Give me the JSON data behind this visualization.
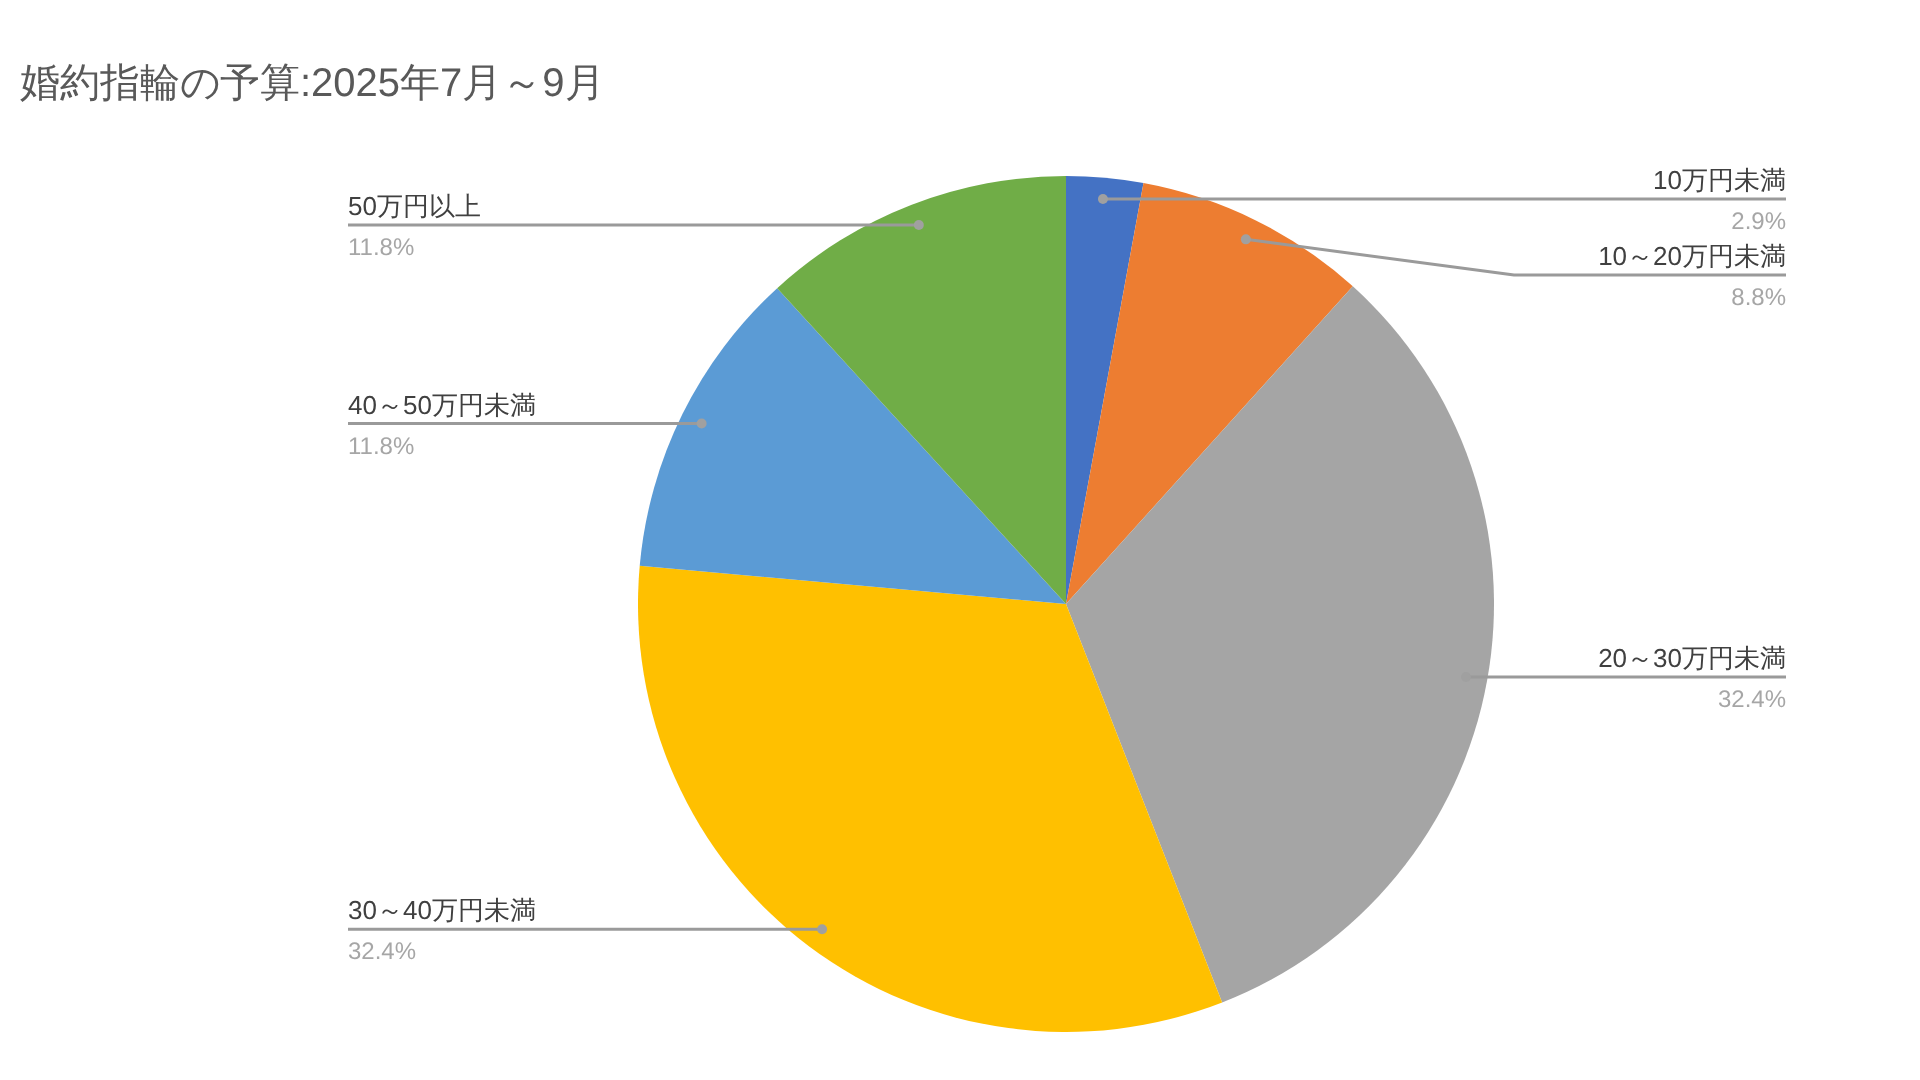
{
  "chart_data": {
    "type": "pie",
    "title": "婚約指輪の予算:2025年7月～9月",
    "categories": [
      "10万円未満",
      "10～20万円未満",
      "20～30万円未満",
      "30～40万円未満",
      "40～50万円未満",
      "50万円以上"
    ],
    "values": [
      2.9,
      8.8,
      32.4,
      32.4,
      11.8,
      11.8
    ],
    "value_labels": [
      "2.9%",
      "8.8%",
      "32.4%",
      "32.4%",
      "11.8%",
      "11.8%"
    ],
    "colors": [
      "#4472c4",
      "#ed7d31",
      "#a5a5a5",
      "#ffc000",
      "#5b9bd5",
      "#70ad47"
    ]
  }
}
